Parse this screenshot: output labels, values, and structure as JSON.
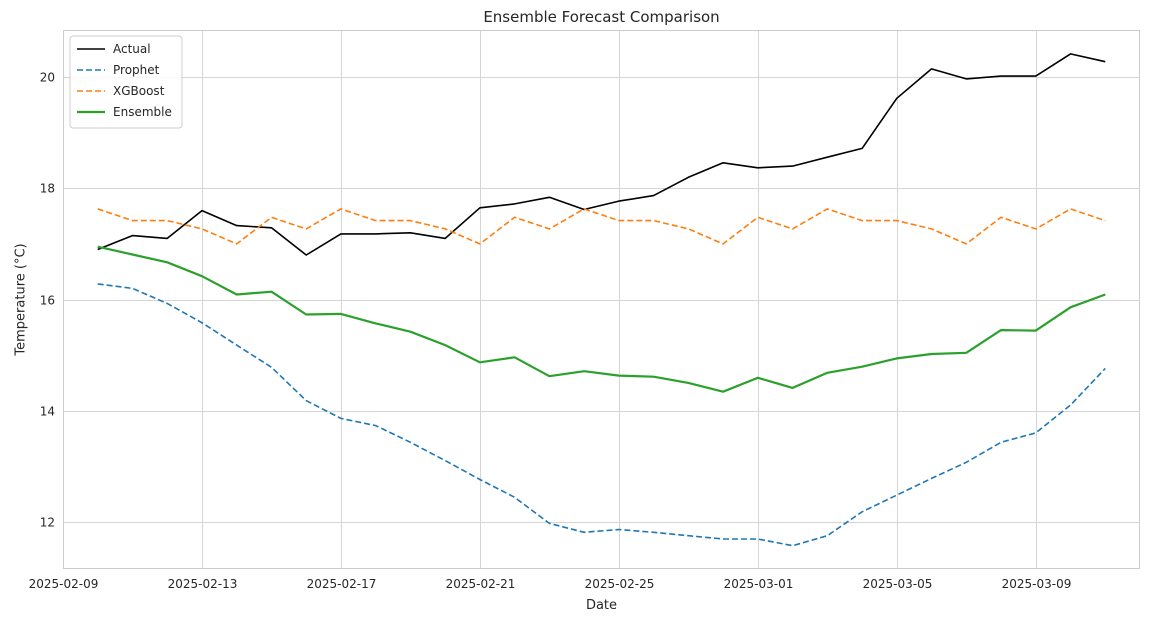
{
  "chart_data": {
    "type": "line",
    "title": "Ensemble Forecast Comparison",
    "xlabel": "Date",
    "ylabel": "Temperature (°C)",
    "x": [
      "2025-02-10",
      "2025-02-11",
      "2025-02-12",
      "2025-02-13",
      "2025-02-14",
      "2025-02-15",
      "2025-02-16",
      "2025-02-17",
      "2025-02-18",
      "2025-02-19",
      "2025-02-20",
      "2025-02-21",
      "2025-02-22",
      "2025-02-23",
      "2025-02-24",
      "2025-02-25",
      "2025-02-26",
      "2025-02-27",
      "2025-02-28",
      "2025-03-01",
      "2025-03-02",
      "2025-03-03",
      "2025-03-04",
      "2025-03-05",
      "2025-03-06",
      "2025-03-07",
      "2025-03-08",
      "2025-03-09",
      "2025-03-10",
      "2025-03-11"
    ],
    "xlim": [
      "2025-02-09",
      "2025-03-12"
    ],
    "xticks": [
      "2025-02-09",
      "2025-02-13",
      "2025-02-17",
      "2025-02-21",
      "2025-02-25",
      "2025-03-01",
      "2025-03-05",
      "2025-03-09"
    ],
    "ylim": [
      11.15,
      20.85
    ],
    "yticks": [
      12,
      14,
      16,
      18,
      20
    ],
    "grid": true,
    "legend_position": "top-left",
    "series": [
      {
        "name": "Actual",
        "color": "#000000",
        "style": "solid",
        "width": 1.6,
        "values": [
          16.9,
          17.15,
          17.1,
          17.6,
          17.33,
          17.29,
          16.8,
          17.18,
          17.18,
          17.2,
          17.1,
          17.65,
          17.72,
          17.84,
          17.62,
          17.77,
          17.87,
          18.2,
          18.46,
          18.37,
          18.4,
          18.56,
          18.72,
          19.62,
          20.15,
          19.97,
          20.02,
          20.02,
          20.42,
          20.28
        ]
      },
      {
        "name": "Prophet",
        "color": "#1f77b4",
        "style": "dashed",
        "width": 1.6,
        "values": [
          16.28,
          16.2,
          15.93,
          15.58,
          15.18,
          14.78,
          14.18,
          13.86,
          13.73,
          13.43,
          13.1,
          12.76,
          12.44,
          11.97,
          11.81,
          11.86,
          11.81,
          11.75,
          11.69,
          11.69,
          11.57,
          11.75,
          12.18,
          12.48,
          12.78,
          13.07,
          13.43,
          13.6,
          14.1,
          14.76
        ]
      },
      {
        "name": "XGBoost",
        "color": "#ff7f0e",
        "style": "dashed",
        "width": 1.6,
        "values": [
          17.63,
          17.42,
          17.42,
          17.27,
          17.0,
          17.48,
          17.27,
          17.63,
          17.42,
          17.42,
          17.27,
          17.0,
          17.48,
          17.27,
          17.63,
          17.42,
          17.42,
          17.27,
          17.0,
          17.48,
          17.27,
          17.63,
          17.42,
          17.42,
          17.27,
          17.0,
          17.48,
          17.27,
          17.63,
          17.42
        ]
      },
      {
        "name": "Ensemble",
        "color": "#2ca02c",
        "style": "solid",
        "width": 2.2,
        "values": [
          16.95,
          16.81,
          16.67,
          16.42,
          16.09,
          16.14,
          15.73,
          15.74,
          15.57,
          15.42,
          15.18,
          14.87,
          14.96,
          14.62,
          14.71,
          14.63,
          14.61,
          14.5,
          14.34,
          14.59,
          14.41,
          14.68,
          14.79,
          14.94,
          15.02,
          15.04,
          15.45,
          15.44,
          15.86,
          16.09
        ]
      }
    ]
  }
}
